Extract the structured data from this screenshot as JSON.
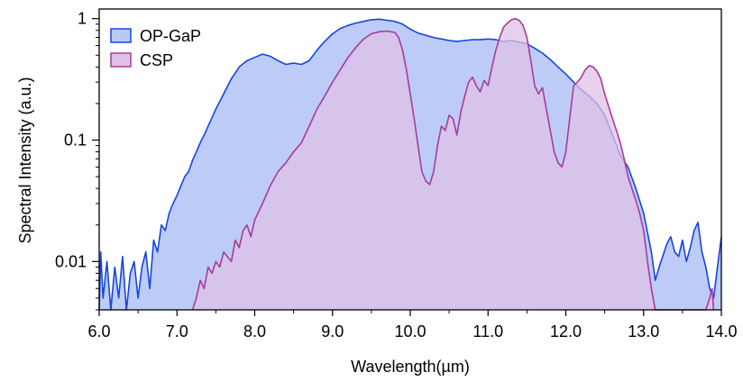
{
  "chart_data": {
    "type": "area",
    "xlabel": "Wavelength(µm)",
    "ylabel": "Spectral Intensity (a.u.)",
    "xlim": [
      6.0,
      14.0
    ],
    "ylim": [
      0.004,
      1.2
    ],
    "yscale": "log",
    "x_ticks": [
      "6.0",
      "7.0",
      "8.0",
      "9.0",
      "10.0",
      "11.0",
      "12.0",
      "13.0",
      "14.0"
    ],
    "y_ticks": [
      "0.01",
      "0.1",
      "1"
    ],
    "grid": false,
    "legend_position": "top-left",
    "series": [
      {
        "name": "OP-GaP",
        "line_color": "#1546e0",
        "fill_color": "#b9c9f5",
        "points": [
          [
            6.0,
            0.004
          ],
          [
            6.02,
            0.012
          ],
          [
            6.05,
            0.005
          ],
          [
            6.1,
            0.01
          ],
          [
            6.15,
            0.004
          ],
          [
            6.2,
            0.009
          ],
          [
            6.25,
            0.005
          ],
          [
            6.3,
            0.011
          ],
          [
            6.35,
            0.004
          ],
          [
            6.4,
            0.008
          ],
          [
            6.45,
            0.01
          ],
          [
            6.5,
            0.005
          ],
          [
            6.55,
            0.009
          ],
          [
            6.6,
            0.012
          ],
          [
            6.65,
            0.006
          ],
          [
            6.7,
            0.015
          ],
          [
            6.75,
            0.012
          ],
          [
            6.8,
            0.02
          ],
          [
            6.85,
            0.018
          ],
          [
            6.9,
            0.025
          ],
          [
            6.95,
            0.03
          ],
          [
            7.0,
            0.035
          ],
          [
            7.05,
            0.042
          ],
          [
            7.1,
            0.05
          ],
          [
            7.15,
            0.055
          ],
          [
            7.2,
            0.068
          ],
          [
            7.25,
            0.08
          ],
          [
            7.3,
            0.095
          ],
          [
            7.35,
            0.11
          ],
          [
            7.4,
            0.13
          ],
          [
            7.5,
            0.18
          ],
          [
            7.6,
            0.24
          ],
          [
            7.7,
            0.32
          ],
          [
            7.8,
            0.4
          ],
          [
            7.9,
            0.45
          ],
          [
            8.0,
            0.48
          ],
          [
            8.1,
            0.51
          ],
          [
            8.2,
            0.49
          ],
          [
            8.3,
            0.45
          ],
          [
            8.4,
            0.42
          ],
          [
            8.5,
            0.43
          ],
          [
            8.6,
            0.42
          ],
          [
            8.7,
            0.45
          ],
          [
            8.8,
            0.55
          ],
          [
            8.9,
            0.65
          ],
          [
            9.0,
            0.75
          ],
          [
            9.1,
            0.83
          ],
          [
            9.2,
            0.88
          ],
          [
            9.3,
            0.92
          ],
          [
            9.4,
            0.95
          ],
          [
            9.5,
            0.98
          ],
          [
            9.6,
            0.99
          ],
          [
            9.7,
            0.97
          ],
          [
            9.8,
            0.95
          ],
          [
            9.9,
            0.9
          ],
          [
            10.0,
            0.82
          ],
          [
            10.1,
            0.76
          ],
          [
            10.2,
            0.73
          ],
          [
            10.3,
            0.7
          ],
          [
            10.4,
            0.68
          ],
          [
            10.5,
            0.66
          ],
          [
            10.6,
            0.65
          ],
          [
            10.7,
            0.66
          ],
          [
            10.8,
            0.67
          ],
          [
            10.9,
            0.67
          ],
          [
            11.0,
            0.68
          ],
          [
            11.1,
            0.67
          ],
          [
            11.2,
            0.65
          ],
          [
            11.3,
            0.66
          ],
          [
            11.4,
            0.64
          ],
          [
            11.5,
            0.62
          ],
          [
            11.6,
            0.57
          ],
          [
            11.7,
            0.52
          ],
          [
            11.8,
            0.46
          ],
          [
            11.9,
            0.4
          ],
          [
            12.0,
            0.35
          ],
          [
            12.1,
            0.3
          ],
          [
            12.2,
            0.26
          ],
          [
            12.3,
            0.23
          ],
          [
            12.4,
            0.2
          ],
          [
            12.5,
            0.16
          ],
          [
            12.6,
            0.11
          ],
          [
            12.7,
            0.075
          ],
          [
            12.8,
            0.06
          ],
          [
            12.9,
            0.04
          ],
          [
            13.0,
            0.025
          ],
          [
            13.1,
            0.012
          ],
          [
            13.15,
            0.007
          ],
          [
            13.2,
            0.009
          ],
          [
            13.3,
            0.014
          ],
          [
            13.35,
            0.016
          ],
          [
            13.4,
            0.012
          ],
          [
            13.45,
            0.011
          ],
          [
            13.5,
            0.015
          ],
          [
            13.55,
            0.01
          ],
          [
            13.6,
            0.013
          ],
          [
            13.65,
            0.018
          ],
          [
            13.7,
            0.021
          ],
          [
            13.75,
            0.012
          ],
          [
            13.8,
            0.009
          ],
          [
            13.85,
            0.006
          ],
          [
            13.9,
            0.005
          ],
          [
            13.95,
            0.009
          ],
          [
            14.0,
            0.016
          ]
        ]
      },
      {
        "name": "CSP",
        "line_color": "#a93b9c",
        "fill_color": "#dfc2e6",
        "points": [
          [
            7.2,
            0.004
          ],
          [
            7.25,
            0.005
          ],
          [
            7.3,
            0.007
          ],
          [
            7.35,
            0.006
          ],
          [
            7.4,
            0.009
          ],
          [
            7.45,
            0.008
          ],
          [
            7.5,
            0.01
          ],
          [
            7.55,
            0.009
          ],
          [
            7.6,
            0.012
          ],
          [
            7.7,
            0.01
          ],
          [
            7.75,
            0.015
          ],
          [
            7.8,
            0.013
          ],
          [
            7.85,
            0.018
          ],
          [
            7.9,
            0.02
          ],
          [
            7.95,
            0.016
          ],
          [
            8.0,
            0.022
          ],
          [
            8.1,
            0.03
          ],
          [
            8.2,
            0.042
          ],
          [
            8.3,
            0.055
          ],
          [
            8.4,
            0.065
          ],
          [
            8.5,
            0.08
          ],
          [
            8.6,
            0.095
          ],
          [
            8.7,
            0.13
          ],
          [
            8.8,
            0.18
          ],
          [
            8.9,
            0.23
          ],
          [
            9.0,
            0.3
          ],
          [
            9.1,
            0.38
          ],
          [
            9.2,
            0.48
          ],
          [
            9.3,
            0.58
          ],
          [
            9.4,
            0.68
          ],
          [
            9.5,
            0.75
          ],
          [
            9.6,
            0.78
          ],
          [
            9.7,
            0.79
          ],
          [
            9.8,
            0.77
          ],
          [
            9.85,
            0.7
          ],
          [
            9.9,
            0.55
          ],
          [
            9.95,
            0.38
          ],
          [
            10.0,
            0.24
          ],
          [
            10.05,
            0.15
          ],
          [
            10.1,
            0.09
          ],
          [
            10.15,
            0.055
          ],
          [
            10.2,
            0.046
          ],
          [
            10.25,
            0.043
          ],
          [
            10.3,
            0.055
          ],
          [
            10.35,
            0.09
          ],
          [
            10.4,
            0.13
          ],
          [
            10.45,
            0.12
          ],
          [
            10.5,
            0.16
          ],
          [
            10.55,
            0.15
          ],
          [
            10.6,
            0.11
          ],
          [
            10.65,
            0.17
          ],
          [
            10.7,
            0.23
          ],
          [
            10.75,
            0.3
          ],
          [
            10.8,
            0.33
          ],
          [
            10.85,
            0.28
          ],
          [
            10.9,
            0.25
          ],
          [
            10.95,
            0.31
          ],
          [
            11.0,
            0.28
          ],
          [
            11.05,
            0.4
          ],
          [
            11.1,
            0.55
          ],
          [
            11.15,
            0.7
          ],
          [
            11.2,
            0.85
          ],
          [
            11.25,
            0.92
          ],
          [
            11.3,
            0.98
          ],
          [
            11.35,
            1.0
          ],
          [
            11.4,
            0.97
          ],
          [
            11.45,
            0.88
          ],
          [
            11.5,
            0.7
          ],
          [
            11.55,
            0.45
          ],
          [
            11.6,
            0.28
          ],
          [
            11.65,
            0.24
          ],
          [
            11.7,
            0.27
          ],
          [
            11.75,
            0.18
          ],
          [
            11.8,
            0.12
          ],
          [
            11.85,
            0.08
          ],
          [
            11.9,
            0.065
          ],
          [
            11.95,
            0.06
          ],
          [
            12.0,
            0.08
          ],
          [
            12.05,
            0.15
          ],
          [
            12.1,
            0.28
          ],
          [
            12.15,
            0.3
          ],
          [
            12.2,
            0.33
          ],
          [
            12.25,
            0.38
          ],
          [
            12.3,
            0.41
          ],
          [
            12.35,
            0.4
          ],
          [
            12.4,
            0.37
          ],
          [
            12.45,
            0.32
          ],
          [
            12.5,
            0.24
          ],
          [
            12.55,
            0.19
          ],
          [
            12.6,
            0.15
          ],
          [
            12.65,
            0.12
          ],
          [
            12.7,
            0.095
          ],
          [
            12.75,
            0.07
          ],
          [
            12.8,
            0.05
          ],
          [
            12.85,
            0.04
          ],
          [
            12.9,
            0.032
          ],
          [
            12.95,
            0.025
          ],
          [
            13.0,
            0.018
          ],
          [
            13.05,
            0.01
          ],
          [
            13.1,
            0.006
          ],
          [
            13.15,
            0.004
          ],
          [
            13.2,
            0.004
          ],
          [
            13.3,
            0.004
          ],
          [
            13.4,
            0.004
          ],
          [
            13.5,
            0.004
          ],
          [
            13.6,
            0.004
          ],
          [
            13.7,
            0.004
          ],
          [
            13.8,
            0.004
          ],
          [
            13.85,
            0.005
          ],
          [
            13.88,
            0.006
          ],
          [
            13.9,
            0.004
          ]
        ]
      }
    ]
  }
}
